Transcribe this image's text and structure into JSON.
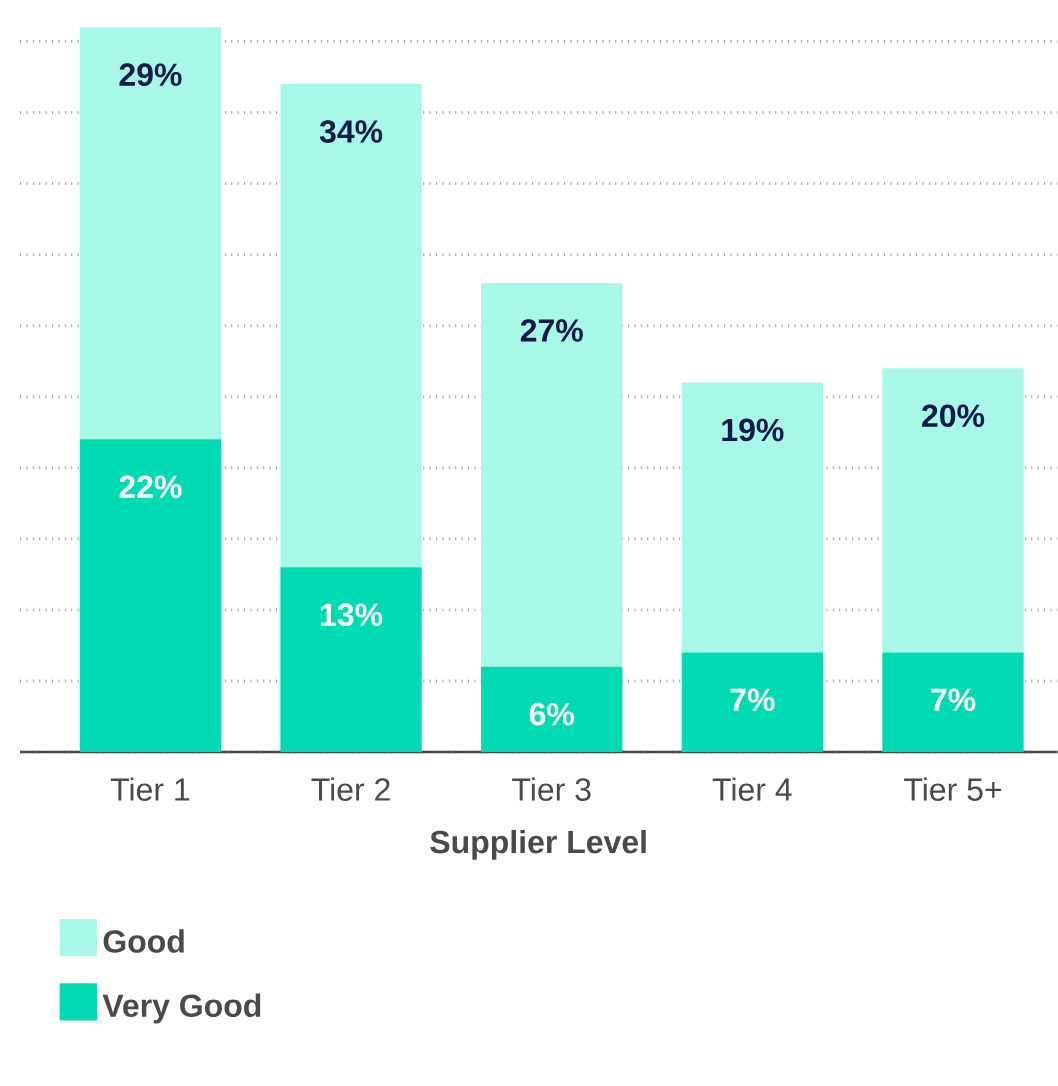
{
  "chart_data": {
    "type": "bar",
    "stacked": true,
    "xlabel": "Supplier Level",
    "categories": [
      "Tier 1",
      "Tier 2",
      "Tier 3",
      "Tier 4",
      "Tier 5+"
    ],
    "series": [
      {
        "name": "Very Good",
        "color": "#00dbb3",
        "values": [
          22,
          13,
          6,
          7,
          7
        ],
        "value_labels": [
          "22%",
          "13%",
          "6%",
          "7%",
          "7%"
        ]
      },
      {
        "name": "Good",
        "color": "#a8f8e8",
        "values": [
          29,
          34,
          27,
          19,
          20
        ],
        "value_labels": [
          "29%",
          "34%",
          "27%",
          "19%",
          "20%"
        ]
      }
    ],
    "grid": "y",
    "tick_labels": "x",
    "legend": "bottom left"
  }
}
